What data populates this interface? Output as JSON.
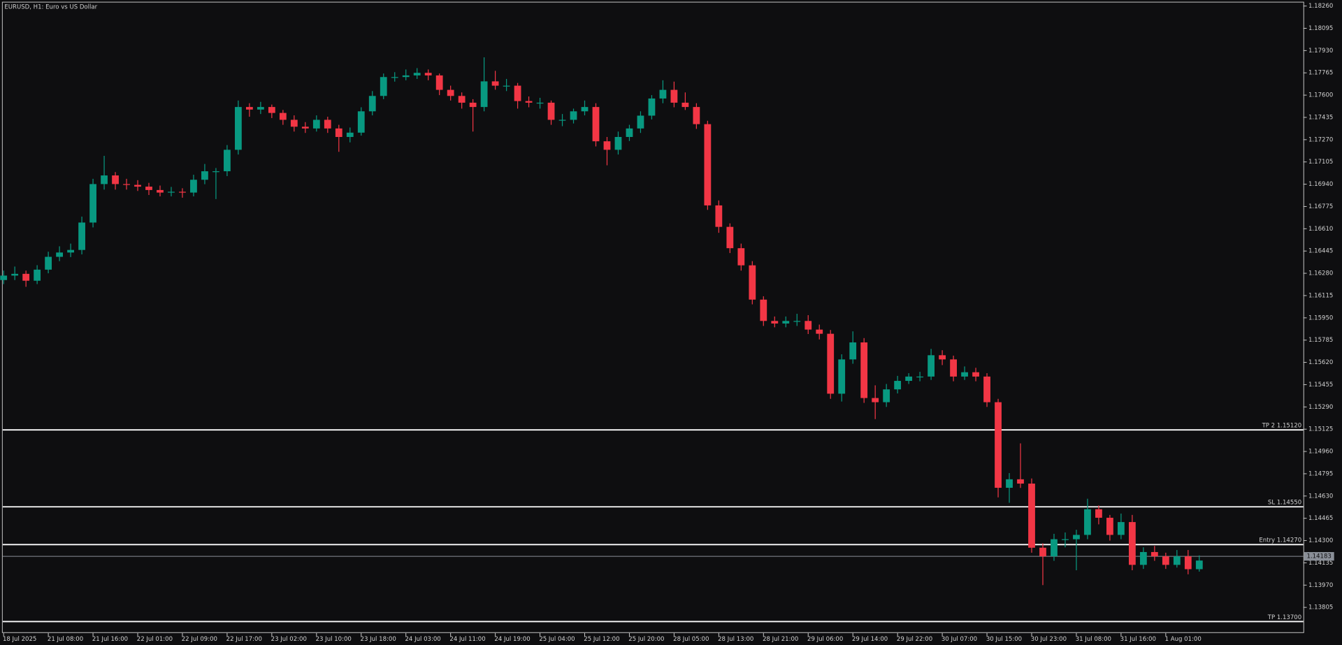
{
  "chart_data": {
    "type": "candlestick",
    "title": "EURUSD, H1:  Euro vs US Dollar",
    "up_color": "#089981",
    "down_color": "#f23645",
    "level_color": "#ffffff",
    "current_color": "#8a8f98",
    "ylim": [
      1.13615,
      1.18292
    ],
    "yticks": [
      {
        "value": 1.1826,
        "label": "1.18260"
      },
      1.18095,
      {
        "value": 1.1793,
        "label": "1.17930"
      },
      1.17765,
      {
        "value": 1.176,
        "label": "1.17600"
      },
      1.17435,
      {
        "value": 1.1727,
        "label": "1.17270"
      },
      1.17105,
      {
        "value": 1.1694,
        "label": "1.16940"
      },
      1.16775,
      {
        "value": 1.1661,
        "label": "1.16610"
      },
      1.16445,
      {
        "value": 1.1628,
        "label": "1.16280"
      },
      1.16115,
      {
        "value": 1.1595,
        "label": "1.15950"
      },
      1.15785,
      {
        "value": 1.1562,
        "label": "1.15620"
      },
      1.15455,
      {
        "value": 1.1529,
        "label": "1.15290"
      },
      1.15125,
      {
        "value": 1.1496,
        "label": "1.14960"
      },
      1.14795,
      {
        "value": 1.1463,
        "label": "1.14630"
      },
      1.14465,
      {
        "value": 1.143,
        "label": "1.14300"
      },
      1.14135,
      {
        "value": 1.1397,
        "label": "1.13970"
      },
      1.13805
    ],
    "categories": [
      "18 Jul 2025",
      null,
      null,
      null,
      "21 Jul 08:00",
      null,
      null,
      null,
      "21 Jul 16:00",
      null,
      null,
      null,
      "22 Jul 01:00",
      null,
      null,
      null,
      "22 Jul 09:00",
      null,
      null,
      null,
      "22 Jul 17:00",
      null,
      null,
      null,
      "23 Jul 02:00",
      null,
      null,
      null,
      "23 Jul 10:00",
      null,
      null,
      null,
      "23 Jul 18:00",
      null,
      null,
      null,
      "24 Jul 03:00",
      null,
      null,
      null,
      "24 Jul 11:00",
      null,
      null,
      null,
      "24 Jul 19:00",
      null,
      null,
      null,
      "25 Jul 04:00",
      null,
      null,
      null,
      "25 Jul 12:00",
      null,
      null,
      null,
      "25 Jul 20:00",
      null,
      null,
      null,
      "28 Jul 05:00",
      null,
      null,
      null,
      "28 Jul 13:00",
      null,
      null,
      null,
      "28 Jul 21:00",
      null,
      null,
      null,
      "29 Jul 06:00",
      null,
      null,
      null,
      "29 Jul 14:00",
      null,
      null,
      null,
      "29 Jul 22:00",
      null,
      null,
      null,
      "30 Jul 07:00",
      null,
      null,
      null,
      "30 Jul 15:00",
      null,
      null,
      null,
      "30 Jul 23:00",
      null,
      null,
      null,
      "31 Jul 08:00",
      null,
      null,
      null,
      "31 Jul 16:00",
      null,
      null,
      null,
      "1 Aug 01:00",
      null,
      null,
      null
    ],
    "ohlc": [
      [
        1.1623,
        1.163,
        1.162,
        1.16263
      ],
      [
        1.16263,
        1.1633,
        1.1623,
        1.16276
      ],
      [
        1.16276,
        1.163,
        1.1618,
        1.16225
      ],
      [
        1.16225,
        1.1634,
        1.162,
        1.16307
      ],
      [
        1.16307,
        1.1644,
        1.1628,
        1.16402
      ],
      [
        1.16402,
        1.1648,
        1.1637,
        1.16434
      ],
      [
        1.16434,
        1.165,
        1.164,
        1.16453
      ],
      [
        1.16453,
        1.167,
        1.1642,
        1.16656
      ],
      [
        1.16656,
        1.1698,
        1.1662,
        1.16941
      ],
      [
        1.16941,
        1.1715,
        1.169,
        1.17005
      ],
      [
        1.17005,
        1.1703,
        1.169,
        1.16941
      ],
      [
        1.16941,
        1.1698,
        1.169,
        1.16935
      ],
      [
        1.16935,
        1.1697,
        1.1689,
        1.16922
      ],
      [
        1.16922,
        1.1695,
        1.1686,
        1.16897
      ],
      [
        1.16897,
        1.1693,
        1.1685,
        1.16878
      ],
      [
        1.16878,
        1.1692,
        1.1685,
        1.16884
      ],
      [
        1.16884,
        1.1691,
        1.1684,
        1.16878
      ],
      [
        1.16878,
        1.1701,
        1.1685,
        1.16973
      ],
      [
        1.16973,
        1.1709,
        1.1694,
        1.17036
      ],
      [
        1.17036,
        1.1706,
        1.1683,
        1.17036
      ],
      [
        1.17036,
        1.1723,
        1.17,
        1.17195
      ],
      [
        1.17195,
        1.1756,
        1.1716,
        1.17512
      ],
      [
        1.17512,
        1.1754,
        1.1744,
        1.17493
      ],
      [
        1.17493,
        1.1755,
        1.1746,
        1.17512
      ],
      [
        1.17512,
        1.1753,
        1.1743,
        1.17468
      ],
      [
        1.17468,
        1.1749,
        1.1738,
        1.17417
      ],
      [
        1.17417,
        1.1745,
        1.1733,
        1.17366
      ],
      [
        1.17366,
        1.174,
        1.1732,
        1.17353
      ],
      [
        1.17353,
        1.1745,
        1.1733,
        1.17417
      ],
      [
        1.17417,
        1.1744,
        1.1732,
        1.17353
      ],
      [
        1.17353,
        1.1738,
        1.1718,
        1.1729
      ],
      [
        1.1729,
        1.1736,
        1.1725,
        1.17322
      ],
      [
        1.17322,
        1.1751,
        1.173,
        1.1748
      ],
      [
        1.1748,
        1.1763,
        1.1745,
        1.17594
      ],
      [
        1.17594,
        1.1776,
        1.1757,
        1.17734
      ],
      [
        1.17734,
        1.1777,
        1.177,
        1.17734
      ],
      [
        1.17734,
        1.1779,
        1.1771,
        1.17746
      ],
      [
        1.17746,
        1.178,
        1.1772,
        1.17765
      ],
      [
        1.17765,
        1.1779,
        1.1771,
        1.17746
      ],
      [
        1.17746,
        1.1776,
        1.176,
        1.17639
      ],
      [
        1.17639,
        1.1767,
        1.1756,
        1.17594
      ],
      [
        1.17594,
        1.1762,
        1.175,
        1.17544
      ],
      [
        1.17544,
        1.1757,
        1.1733,
        1.17512
      ],
      [
        1.17512,
        1.1788,
        1.1748,
        1.17702
      ],
      [
        1.17702,
        1.1778,
        1.1764,
        1.1767
      ],
      [
        1.1767,
        1.1772,
        1.1763,
        1.1767
      ],
      [
        1.1767,
        1.1769,
        1.175,
        1.17556
      ],
      [
        1.17556,
        1.1759,
        1.1751,
        1.17544
      ],
      [
        1.17544,
        1.1758,
        1.175,
        1.17544
      ],
      [
        1.17544,
        1.1756,
        1.1738,
        1.17417
      ],
      [
        1.17417,
        1.1746,
        1.1737,
        1.17417
      ],
      [
        1.17417,
        1.175,
        1.1739,
        1.1748
      ],
      [
        1.1748,
        1.1756,
        1.1745,
        1.17512
      ],
      [
        1.17512,
        1.1754,
        1.1722,
        1.17258
      ],
      [
        1.17258,
        1.1729,
        1.1708,
        1.17195
      ],
      [
        1.17195,
        1.1733,
        1.1716,
        1.1729
      ],
      [
        1.1729,
        1.1738,
        1.1726,
        1.17353
      ],
      [
        1.17353,
        1.1748,
        1.1732,
        1.17448
      ],
      [
        1.17448,
        1.176,
        1.1742,
        1.17575
      ],
      [
        1.17575,
        1.1771,
        1.1754,
        1.17639
      ],
      [
        1.17639,
        1.177,
        1.1751,
        1.17544
      ],
      [
        1.17544,
        1.1762,
        1.1749,
        1.17512
      ],
      [
        1.17512,
        1.1754,
        1.1735,
        1.17385
      ],
      [
        1.17385,
        1.1741,
        1.1675,
        1.16783
      ],
      [
        1.16783,
        1.1682,
        1.1658,
        1.16624
      ],
      [
        1.16624,
        1.1665,
        1.1643,
        1.16466
      ],
      [
        1.16466,
        1.165,
        1.163,
        1.16339
      ],
      [
        1.16339,
        1.1637,
        1.1605,
        1.16085
      ],
      [
        1.16085,
        1.1611,
        1.1589,
        1.15927
      ],
      [
        1.15927,
        1.1596,
        1.1588,
        1.15908
      ],
      [
        1.15908,
        1.1596,
        1.1588,
        1.15927
      ],
      [
        1.15927,
        1.1598,
        1.1589,
        1.15927
      ],
      [
        1.15927,
        1.1597,
        1.1583,
        1.15863
      ],
      [
        1.15863,
        1.159,
        1.1579,
        1.15832
      ],
      [
        1.15832,
        1.1586,
        1.1535,
        1.15388
      ],
      [
        1.15388,
        1.1568,
        1.1533,
        1.15642
      ],
      [
        1.15642,
        1.1585,
        1.1561,
        1.15768
      ],
      [
        1.15768,
        1.158,
        1.1532,
        1.15356
      ],
      [
        1.15356,
        1.1545,
        1.152,
        1.15325
      ],
      [
        1.15325,
        1.1546,
        1.1529,
        1.1542
      ],
      [
        1.1542,
        1.1552,
        1.1539,
        1.15483
      ],
      [
        1.15483,
        1.1554,
        1.1546,
        1.15515
      ],
      [
        1.15515,
        1.1555,
        1.1548,
        1.15515
      ],
      [
        1.15515,
        1.1572,
        1.1549,
        1.15673
      ],
      [
        1.15673,
        1.1571,
        1.156,
        1.15642
      ],
      [
        1.15642,
        1.1567,
        1.1548,
        1.15515
      ],
      [
        1.15515,
        1.1559,
        1.1549,
        1.15547
      ],
      [
        1.15547,
        1.1558,
        1.1548,
        1.15515
      ],
      [
        1.15515,
        1.1554,
        1.1529,
        1.15325
      ],
      [
        1.15325,
        1.1535,
        1.1462,
        1.14691
      ],
      [
        1.14691,
        1.148,
        1.1458,
        1.14754
      ],
      [
        1.14754,
        1.1502,
        1.1469,
        1.14722
      ],
      [
        1.14722,
        1.1476,
        1.1421,
        1.14247
      ],
      [
        1.14247,
        1.1428,
        1.1397,
        1.14183
      ],
      [
        1.14183,
        1.1435,
        1.1415,
        1.1431
      ],
      [
        1.1431,
        1.1436,
        1.1425,
        1.1431
      ],
      [
        1.1431,
        1.1438,
        1.1408,
        1.14342
      ],
      [
        1.14342,
        1.1461,
        1.1431,
        1.14532
      ],
      [
        1.14532,
        1.1456,
        1.1442,
        1.14469
      ],
      [
        1.14469,
        1.1449,
        1.143,
        1.14342
      ],
      [
        1.14342,
        1.145,
        1.1431,
        1.14437
      ],
      [
        1.14437,
        1.1449,
        1.1408,
        1.1412
      ],
      [
        1.1412,
        1.1425,
        1.1409,
        1.14215
      ],
      [
        1.14215,
        1.1426,
        1.1415,
        1.14183
      ],
      [
        1.14183,
        1.1421,
        1.1409,
        1.1412
      ],
      [
        1.1412,
        1.1423,
        1.141,
        1.14183
      ],
      [
        1.14183,
        1.1423,
        1.1405,
        1.14088
      ],
      [
        1.14088,
        1.1419,
        1.1407,
        1.14152
      ]
    ],
    "levels": [
      {
        "label": "TP 2 1.15120",
        "value": 1.1512
      },
      {
        "label": "SL 1.14550",
        "value": 1.1455
      },
      {
        "label": "Entry 1.14270",
        "value": 1.1427
      },
      {
        "label": "TP 1.13700",
        "value": 1.137
      }
    ],
    "current_price": 1.14183
  }
}
